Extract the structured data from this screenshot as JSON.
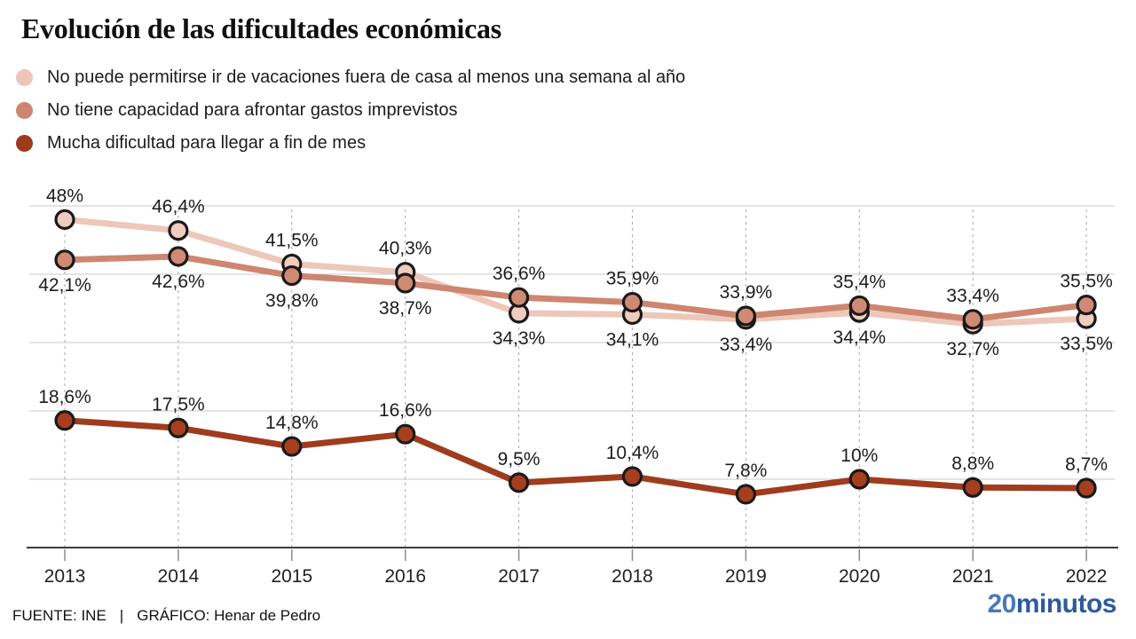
{
  "header": {
    "title": "Evolución de las dificultades económicas"
  },
  "legend": [
    {
      "label": "No puede permitirse ir de vacaciones fuera de casa al menos una semana al año",
      "color": "#ECC6B9"
    },
    {
      "label": "No tiene capacidad para afrontar gastos imprevistos",
      "color": "#CD8670"
    },
    {
      "label": "Mucha dificultad para llegar a fin de mes",
      "color": "#9E3B1C"
    }
  ],
  "chart_data": {
    "type": "line",
    "x": [
      "2013",
      "2014",
      "2015",
      "2016",
      "2017",
      "2018",
      "2019",
      "2020",
      "2021",
      "2022"
    ],
    "ylim": [
      0,
      50
    ],
    "gridline_values": [
      50,
      40,
      30,
      20,
      10
    ],
    "grid_on": true,
    "legend_position": "top-left",
    "marker_stroke": "#1a1a1a",
    "series": [
      {
        "name": "No puede permitirse ir de vacaciones fuera de casa al menos una semana al año",
        "line_color": "#EDC7B9",
        "marker_fill": "#EFCCC0",
        "values": [
          48,
          46.4,
          41.5,
          40.3,
          34.3,
          34.1,
          33.4,
          34.4,
          32.7,
          33.5
        ],
        "point_labels": [
          "48%",
          "46,4%",
          "41,5%",
          "40,3%",
          "34,3%",
          "34,1%",
          "33,4%",
          "34,4%",
          "32,7%",
          "33,5%"
        ],
        "label_positions": [
          "above",
          "above",
          "above",
          "above",
          "below",
          "below",
          "below",
          "below",
          "below",
          "below"
        ]
      },
      {
        "name": "No tiene capacidad para afrontar gastos imprevistos",
        "line_color": "#CE8670",
        "marker_fill": "#D08973",
        "values": [
          42.1,
          42.6,
          39.8,
          38.7,
          36.6,
          35.9,
          33.9,
          35.4,
          33.4,
          35.5
        ],
        "point_labels": [
          "42,1%",
          "42,6%",
          "39,8%",
          "38,7%",
          "36,6%",
          "35,9%",
          "33,9%",
          "35,4%",
          "33,4%",
          "35,5%"
        ],
        "label_positions": [
          "below",
          "below",
          "below",
          "below",
          "above",
          "above",
          "above",
          "above",
          "above",
          "above"
        ]
      },
      {
        "name": "Mucha dificultad para llegar a fin de mes",
        "line_color": "#9F3C1D",
        "marker_fill": "#A63F1E",
        "values": [
          18.6,
          17.5,
          14.8,
          16.6,
          9.5,
          10.4,
          7.8,
          10,
          8.8,
          8.7
        ],
        "point_labels": [
          "18,6%",
          "17,5%",
          "14,8%",
          "16,6%",
          "9,5%",
          "10,4%",
          "7,8%",
          "10%",
          "8,8%",
          "8,7%"
        ],
        "label_positions": [
          "above",
          "above",
          "above",
          "above",
          "above",
          "above",
          "above",
          "above",
          "above",
          "above"
        ]
      }
    ]
  },
  "footer": {
    "source": "FUENTE: INE",
    "separator": "|",
    "credit": "GRÁFICO: Henar de Pedro",
    "logo": {
      "part1": "20",
      "part2": "minutos",
      "color1": "#4A79BD",
      "color2": "#2D5A9C"
    }
  }
}
